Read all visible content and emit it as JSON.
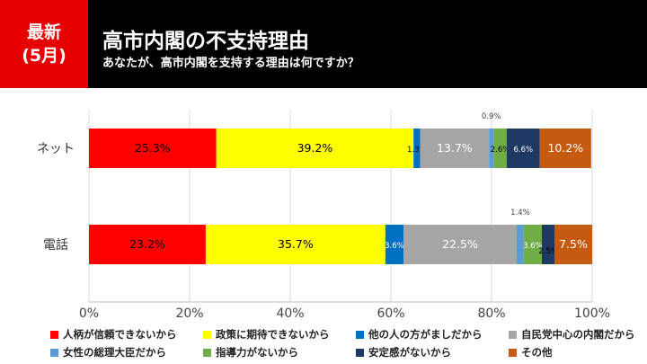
{
  "header": {
    "badge_line1": "最新",
    "badge_line2": "(5月)",
    "title": "高市内閣の不支持理由",
    "subtitle": "あなたが、高市内閣を支持する理由は何ですか？"
  },
  "colors": {
    "header_bg": "#000000",
    "badge_bg": "#e60000"
  },
  "chart_data": {
    "type": "bar",
    "orientation": "horizontal-stacked",
    "categories": [
      "ネット",
      "電話"
    ],
    "xlim": [
      0,
      100
    ],
    "xticks": [
      "0%",
      "20%",
      "40%",
      "60%",
      "80%",
      "100%"
    ],
    "grid": true,
    "legend_position": "bottom",
    "series": [
      {
        "name": "人柄が信頼できないから",
        "color": "#ff0000",
        "values": [
          25.3,
          23.2
        ],
        "labels": [
          "25.3%",
          "23.2%"
        ]
      },
      {
        "name": "政策に期待できないから",
        "color": "#ffff00",
        "values": [
          39.2,
          35.7
        ],
        "labels": [
          "39.2%",
          "35.7%"
        ]
      },
      {
        "name": "他の人の方がましだから",
        "color": "#0070c0",
        "values": [
          1.3,
          3.6
        ],
        "labels": [
          "1.3%",
          "3.6%"
        ]
      },
      {
        "name": "自民党中心の内閣だから",
        "color": "#a6a6a6",
        "values": [
          13.7,
          22.5
        ],
        "labels": [
          "13.7%",
          "22.5%"
        ]
      },
      {
        "name": "女性の総理大臣だから",
        "color": "#5b9bd5",
        "values": [
          0.9,
          1.4
        ],
        "labels": [
          "0.9%",
          "1.4%"
        ]
      },
      {
        "name": "指導力がないから",
        "color": "#70ad47",
        "values": [
          2.6,
          3.6
        ],
        "labels": [
          "2.6%",
          "3.6%"
        ]
      },
      {
        "name": "安定感がないから",
        "color": "#203864",
        "values": [
          6.6,
          2.5
        ],
        "labels": [
          "6.6%",
          "2.5%"
        ]
      },
      {
        "name": "その他",
        "color": "#c55a11",
        "values": [
          10.2,
          7.5
        ],
        "labels": [
          "10.2%",
          "7.5%"
        ]
      }
    ]
  }
}
